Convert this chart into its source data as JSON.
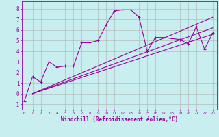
{
  "xlabel": "Windchill (Refroidissement éolien,°C)",
  "background_color": "#c8eef0",
  "grid_color": "#b0b0b0",
  "line_color": "#990099",
  "x_ticks": [
    0,
    1,
    2,
    3,
    4,
    5,
    6,
    7,
    8,
    9,
    10,
    11,
    12,
    13,
    14,
    15,
    16,
    17,
    18,
    19,
    20,
    21,
    22,
    23
  ],
  "y_ticks": [
    -1,
    0,
    1,
    2,
    3,
    4,
    5,
    6,
    7,
    8
  ],
  "xlim": [
    -0.3,
    23.5
  ],
  "ylim": [
    -1.5,
    8.7
  ],
  "series1_x": [
    0,
    1,
    2,
    3,
    4,
    5,
    6,
    7,
    8,
    9,
    10,
    11,
    12,
    13,
    14,
    15,
    16,
    17,
    18,
    19,
    20,
    21,
    22,
    23
  ],
  "series1_y": [
    -0.7,
    1.6,
    1.1,
    3.0,
    2.5,
    2.6,
    2.6,
    4.8,
    4.8,
    5.0,
    6.5,
    7.8,
    7.9,
    7.9,
    7.2,
    4.0,
    5.3,
    5.3,
    5.2,
    5.1,
    4.7,
    6.3,
    4.2,
    5.7
  ],
  "trend1_x": [
    1,
    23
  ],
  "trend1_y": [
    0.0,
    5.6
  ],
  "trend2_x": [
    1,
    23
  ],
  "trend2_y": [
    0.0,
    6.2
  ],
  "trend3_x": [
    1,
    23
  ],
  "trend3_y": [
    0.0,
    7.2
  ],
  "linewidth": 0.8,
  "markersize": 3.5
}
